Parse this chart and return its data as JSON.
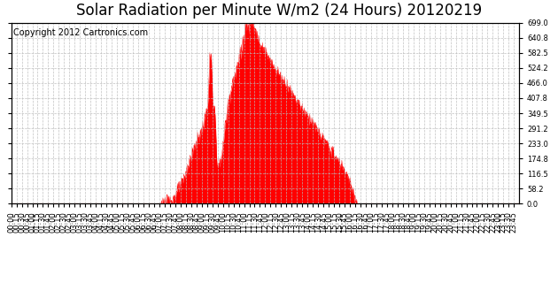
{
  "title": "Solar Radiation per Minute W/m2 (24 Hours) 20120219",
  "copyright_text": "Copyright 2012 Cartronics.com",
  "y_min": 0.0,
  "y_max": 699.0,
  "y_ticks": [
    0.0,
    58.2,
    116.5,
    174.8,
    233.0,
    291.2,
    349.5,
    407.8,
    466.0,
    524.2,
    582.5,
    640.8,
    699.0
  ],
  "fill_color": "#FF0000",
  "line_color": "#FF0000",
  "dashed_line_color": "#FF0000",
  "grid_color": "#AAAAAA",
  "background_color": "#FFFFFF",
  "title_fontsize": 12,
  "copyright_fontsize": 7,
  "tick_fontsize": 6
}
